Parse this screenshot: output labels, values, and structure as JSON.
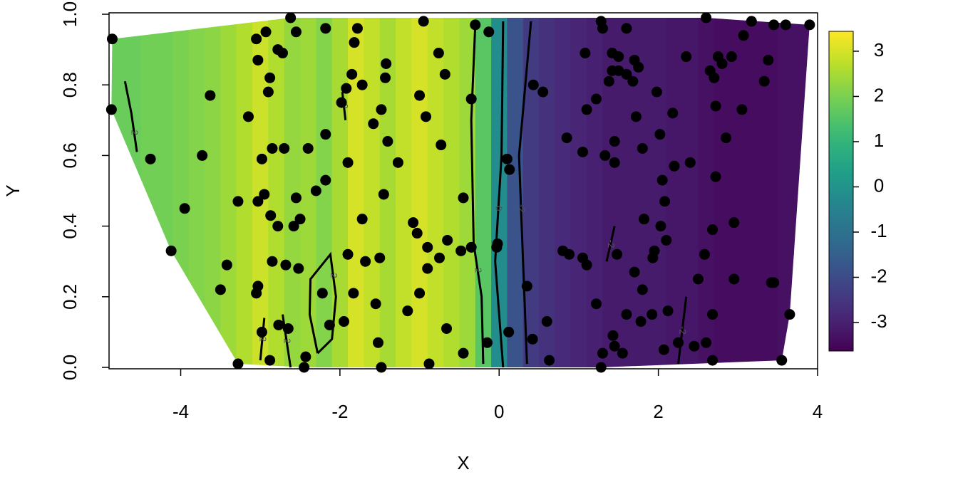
{
  "chart_data": {
    "type": "contour",
    "xlabel": "X",
    "ylabel": "Y",
    "xlim": [
      -4.9,
      4
    ],
    "ylim": [
      0,
      1
    ],
    "xticks": [
      -4,
      -2,
      0,
      2,
      4
    ],
    "yticks": [
      {
        "value": 0,
        "label": "0.0"
      },
      {
        "value": 0.2,
        "label": "0.2"
      },
      {
        "value": 0.4,
        "label": "0.4"
      },
      {
        "value": 0.6,
        "label": "0.6"
      },
      {
        "value": 0.8,
        "label": "0.8"
      },
      {
        "value": 1,
        "label": "1.0"
      }
    ],
    "point_color": "#000000",
    "contour_color": "#000000",
    "surface": {
      "x": [
        -4.8,
        -4.6,
        -4.4,
        -4.2,
        -4.0,
        -3.8,
        -3.6,
        -3.4,
        -3.2,
        -3.0,
        -2.8,
        -2.6,
        -2.4,
        -2.2,
        -2.0,
        -1.8,
        -1.6,
        -1.4,
        -1.2,
        -1.0,
        -0.8,
        -0.6,
        -0.4,
        -0.2,
        0.0,
        0.2,
        0.4,
        0.6,
        0.8,
        1.0,
        1.2,
        1.4,
        1.6,
        1.8,
        2.0,
        2.2,
        2.4,
        2.6,
        2.8,
        3.0,
        3.2,
        3.4,
        3.6,
        3.8
      ],
      "z": [
        1.8,
        1.8,
        1.9,
        1.9,
        2.0,
        2.1,
        2.2,
        2.4,
        2.6,
        2.9,
        2.6,
        2.3,
        2.4,
        2.1,
        2.5,
        3.0,
        2.8,
        2.5,
        2.8,
        3.0,
        2.8,
        2.6,
        2.4,
        1.6,
        -0.2,
        -1.8,
        -2.4,
        -2.6,
        -2.8,
        -2.9,
        -3.0,
        -3.1,
        -3.1,
        -3.1,
        -3.1,
        -3.2,
        -3.2,
        -3.3,
        -3.4,
        -3.4,
        -3.4,
        -3.4,
        -3.3,
        -3.3
      ]
    },
    "colorbar": {
      "lim": [
        -3.63,
        3.44
      ],
      "ticks": [
        3,
        2,
        1,
        0,
        -1,
        -2,
        -3
      ]
    },
    "contours": [
      {
        "level": 2,
        "x": [
          -4.7,
          -4.62,
          -4.55
        ],
        "y": [
          0.81,
          0.72,
          0.61
        ]
      },
      {
        "level": 2,
        "x": [
          -2.28,
          -2.38,
          -2.37,
          -2.12,
          -2.05,
          -2.1,
          -2.28
        ],
        "y": [
          0.04,
          0.15,
          0.25,
          0.32,
          0.2,
          0.08,
          0.04
        ]
      },
      {
        "level": 2,
        "x": [
          -2.95,
          -3.0
        ],
        "y": [
          0.14,
          0.02
        ]
      },
      {
        "level": 2,
        "x": [
          -2.72,
          -2.62
        ],
        "y": [
          0.15,
          0.0
        ]
      },
      {
        "level": 2,
        "x": [
          -1.97,
          -1.93
        ],
        "y": [
          0.78,
          0.7
        ]
      },
      {
        "level": 2,
        "x": [
          -0.3,
          -0.35,
          -0.32,
          -0.22,
          -0.2
        ],
        "y": [
          0.97,
          0.7,
          0.35,
          0.2,
          0.01
        ]
      },
      {
        "level": 0,
        "x": [
          0.05,
          0.03,
          -0.05,
          0.05
        ],
        "y": [
          0.98,
          0.6,
          0.3,
          0.0
        ]
      },
      {
        "level": -2,
        "x": [
          0.4,
          0.25,
          0.3,
          0.35
        ],
        "y": [
          0.98,
          0.6,
          0.3,
          0.01
        ]
      },
      {
        "level": -2,
        "x": [
          1.45,
          1.35
        ],
        "y": [
          0.4,
          0.3
        ]
      },
      {
        "level": -2,
        "x": [
          2.35,
          2.25
        ],
        "y": [
          0.2,
          0.01
        ]
      }
    ],
    "points": [
      [
        -4.86,
        0.93
      ],
      [
        -4.87,
        0.73
      ],
      [
        -4.38,
        0.59
      ],
      [
        -3.95,
        0.45
      ],
      [
        -4.12,
        0.33
      ],
      [
        -3.63,
        0.77
      ],
      [
        -3.73,
        0.6
      ],
      [
        -3.42,
        0.29
      ],
      [
        -3.5,
        0.22
      ],
      [
        -3.28,
        0.01
      ],
      [
        -3.15,
        0.71
      ],
      [
        -3.28,
        0.47
      ],
      [
        -3.05,
        0.93
      ],
      [
        -3.03,
        0.87
      ],
      [
        -2.93,
        0.95
      ],
      [
        -2.78,
        0.9
      ],
      [
        -2.72,
        0.89
      ],
      [
        -2.62,
        0.99
      ],
      [
        -2.55,
        0.95
      ],
      [
        -2.88,
        0.82
      ],
      [
        -2.9,
        0.78
      ],
      [
        -2.85,
        0.62
      ],
      [
        -2.7,
        0.62
      ],
      [
        -2.98,
        0.59
      ],
      [
        -2.95,
        0.49
      ],
      [
        -3.03,
        0.47
      ],
      [
        -2.87,
        0.43
      ],
      [
        -2.78,
        0.4
      ],
      [
        -2.58,
        0.4
      ],
      [
        -2.55,
        0.48
      ],
      [
        -2.5,
        0.42
      ],
      [
        -2.85,
        0.3
      ],
      [
        -2.68,
        0.29
      ],
      [
        -2.52,
        0.28
      ],
      [
        -3.03,
        0.23
      ],
      [
        -3.05,
        0.21
      ],
      [
        -2.98,
        0.1
      ],
      [
        -2.77,
        0.12
      ],
      [
        -2.65,
        0.11
      ],
      [
        -2.88,
        0.02
      ],
      [
        -2.45,
        0.0
      ],
      [
        -2.43,
        0.03
      ],
      [
        -2.4,
        0.62
      ],
      [
        -2.3,
        0.5
      ],
      [
        -2.18,
        0.53
      ],
      [
        -2.18,
        0.66
      ],
      [
        -2.18,
        0.96
      ],
      [
        -2.22,
        0.21
      ],
      [
        -2.13,
        0.12
      ],
      [
        -1.95,
        0.13
      ],
      [
        -1.9,
        0.32
      ],
      [
        -1.9,
        0.58
      ],
      [
        -1.92,
        0.79
      ],
      [
        -1.85,
        0.83
      ],
      [
        -1.78,
        0.96
      ],
      [
        -1.82,
        0.92
      ],
      [
        -1.72,
        0.8
      ],
      [
        -1.98,
        0.75
      ],
      [
        -1.72,
        0.42
      ],
      [
        -1.68,
        0.3
      ],
      [
        -1.83,
        0.21
      ],
      [
        -1.5,
        0.31
      ],
      [
        -1.55,
        0.18
      ],
      [
        -1.52,
        0.07
      ],
      [
        -1.48,
        0.0
      ],
      [
        -1.45,
        0.49
      ],
      [
        -1.4,
        0.64
      ],
      [
        -1.43,
        0.82
      ],
      [
        -1.42,
        0.86
      ],
      [
        -1.48,
        0.73
      ],
      [
        -1.58,
        0.69
      ],
      [
        -1.27,
        0.58
      ],
      [
        -1.15,
        0.16
      ],
      [
        -1.0,
        0.21
      ],
      [
        -1.08,
        0.41
      ],
      [
        -1.03,
        0.38
      ],
      [
        -0.9,
        0.28
      ],
      [
        -0.9,
        0.34
      ],
      [
        -0.92,
        0.71
      ],
      [
        -1.0,
        0.77
      ],
      [
        -0.95,
        0.98
      ],
      [
        -0.88,
        0.01
      ],
      [
        -0.75,
        0.31
      ],
      [
        -0.73,
        0.63
      ],
      [
        -0.76,
        0.89
      ],
      [
        -0.68,
        0.83
      ],
      [
        -0.65,
        0.36
      ],
      [
        -0.66,
        0.11
      ],
      [
        -0.45,
        0.04
      ],
      [
        -0.45,
        0.48
      ],
      [
        -0.48,
        0.33
      ],
      [
        -0.35,
        0.34
      ],
      [
        -0.3,
        0.97
      ],
      [
        -0.35,
        0.76
      ],
      [
        -0.13,
        0.95
      ],
      [
        -0.15,
        0.07
      ],
      [
        -0.02,
        0.35
      ],
      [
        -0.03,
        0.34
      ],
      [
        0.1,
        0.59
      ],
      [
        0.13,
        0.56
      ],
      [
        0.12,
        0.1
      ],
      [
        0.35,
        0.23
      ],
      [
        0.42,
        0.08
      ],
      [
        0.43,
        0.8
      ],
      [
        0.55,
        0.78
      ],
      [
        0.6,
        0.13
      ],
      [
        0.63,
        0.02
      ],
      [
        0.85,
        0.65
      ],
      [
        0.8,
        0.33
      ],
      [
        0.88,
        0.32
      ],
      [
        1.05,
        0.61
      ],
      [
        1.05,
        0.31
      ],
      [
        1.1,
        0.29
      ],
      [
        1.08,
        0.89
      ],
      [
        1.1,
        0.73
      ],
      [
        1.22,
        0.76
      ],
      [
        1.22,
        0.18
      ],
      [
        1.28,
        0.98
      ],
      [
        1.3,
        0.96
      ],
      [
        1.3,
        0.04
      ],
      [
        1.28,
        0.0
      ],
      [
        1.33,
        0.6
      ],
      [
        1.38,
        0.81
      ],
      [
        1.42,
        0.89
      ],
      [
        1.42,
        0.84
      ],
      [
        1.45,
        0.64
      ],
      [
        1.45,
        0.58
      ],
      [
        1.48,
        0.32
      ],
      [
        1.43,
        0.09
      ],
      [
        1.45,
        0.06
      ],
      [
        1.5,
        0.84
      ],
      [
        1.5,
        0.88
      ],
      [
        1.55,
        0.04
      ],
      [
        1.6,
        0.15
      ],
      [
        1.6,
        0.96
      ],
      [
        1.6,
        0.83
      ],
      [
        1.68,
        0.81
      ],
      [
        1.7,
        0.87
      ],
      [
        1.75,
        0.85
      ],
      [
        1.72,
        0.71
      ],
      [
        1.7,
        0.27
      ],
      [
        1.78,
        0.13
      ],
      [
        1.8,
        0.62
      ],
      [
        1.8,
        0.22
      ],
      [
        1.82,
        0.42
      ],
      [
        1.92,
        0.15
      ],
      [
        1.93,
        0.31
      ],
      [
        1.95,
        0.33
      ],
      [
        1.98,
        0.78
      ],
      [
        2.02,
        0.66
      ],
      [
        2.03,
        0.4
      ],
      [
        2.05,
        0.53
      ],
      [
        2.08,
        0.47
      ],
      [
        2.07,
        0.05
      ],
      [
        2.1,
        0.36
      ],
      [
        2.12,
        0.16
      ],
      [
        2.18,
        0.72
      ],
      [
        2.2,
        0.57
      ],
      [
        2.25,
        0.07
      ],
      [
        2.35,
        0.88
      ],
      [
        2.4,
        0.58
      ],
      [
        2.45,
        0.06
      ],
      [
        2.5,
        0.25
      ],
      [
        2.58,
        0.32
      ],
      [
        2.6,
        0.99
      ],
      [
        2.6,
        0.07
      ],
      [
        2.65,
        0.84
      ],
      [
        2.68,
        0.39
      ],
      [
        2.68,
        0.15
      ],
      [
        2.68,
        0.02
      ],
      [
        2.7,
        0.82
      ],
      [
        2.72,
        0.54
      ],
      [
        2.72,
        0.74
      ],
      [
        2.75,
        0.88
      ],
      [
        2.8,
        0.86
      ],
      [
        2.85,
        0.65
      ],
      [
        2.92,
        0.88
      ],
      [
        2.95,
        0.41
      ],
      [
        2.95,
        0.25
      ],
      [
        3.05,
        0.73
      ],
      [
        3.07,
        0.94
      ],
      [
        3.17,
        0.98
      ],
      [
        3.33,
        0.81
      ],
      [
        3.38,
        0.87
      ],
      [
        3.42,
        0.24
      ],
      [
        3.45,
        0.24
      ],
      [
        3.45,
        0.97
      ],
      [
        3.55,
        0.02
      ],
      [
        3.6,
        0.97
      ],
      [
        3.65,
        0.15
      ],
      [
        3.9,
        0.97
      ]
    ]
  }
}
